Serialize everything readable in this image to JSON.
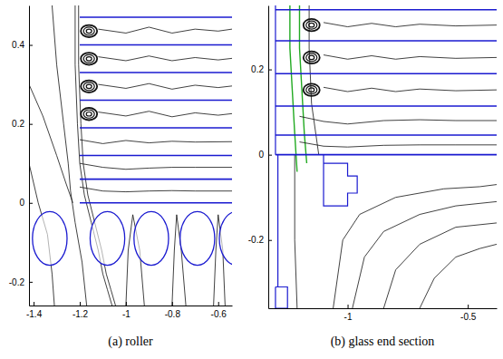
{
  "chart_data": [
    {
      "type": "streamline",
      "title": "(a) roller",
      "xlim": [
        -1.42,
        -0.54
      ],
      "ylim": [
        -0.26,
        0.5
      ],
      "xticks": [
        -1.4,
        -1.2,
        -1,
        -0.8,
        -0.6
      ],
      "yticks": [
        -0.2,
        0,
        0.2,
        0.4
      ],
      "color": "#1a1ad0",
      "plates": {
        "x0": -1.2,
        "y": [
          0.47,
          0.4,
          0.33,
          0.26,
          0.19,
          0.12,
          0.06,
          0.0
        ]
      },
      "rollers": {
        "x": [
          -1.33,
          -1.08,
          -0.89,
          -0.69,
          -0.52
        ],
        "y": -0.09,
        "rx": 0.075,
        "ry": 0.068
      },
      "outlines": [],
      "vortices": {
        "x": [
          -1.16,
          -1.16,
          -1.16,
          -1.16
        ],
        "y": [
          0.435,
          0.365,
          0.295,
          0.225
        ]
      },
      "streamlines": [
        {
          "x": [
            -1.22,
            -1.22,
            -1.21,
            -1.2,
            -1.18,
            -1.15,
            -1.12,
            -1.1,
            -1.08,
            -1.06
          ],
          "y": [
            0.5,
            0.35,
            0.2,
            0.1,
            0.02,
            -0.05,
            -0.12,
            -0.18,
            -0.22,
            -0.26
          ]
        },
        {
          "x": [
            -1.205,
            -1.205,
            -1.195,
            -1.185,
            -1.165,
            -1.135,
            -1.105,
            -1.085,
            -1.065,
            -1.045
          ],
          "y": [
            0.5,
            0.35,
            0.2,
            0.1,
            0.02,
            -0.05,
            -0.12,
            -0.18,
            -0.22,
            -0.26
          ]
        },
        {
          "x": [
            -1.32,
            -1.3,
            -1.27,
            -1.25,
            -1.24,
            -1.22,
            -1.19,
            -1.17
          ],
          "y": [
            0.5,
            0.35,
            0.2,
            0.1,
            0.03,
            -0.05,
            -0.15,
            -0.26
          ]
        },
        {
          "x": [
            -1.42,
            -1.36,
            -1.3,
            -1.26,
            -1.23
          ],
          "y": [
            0.3,
            0.22,
            0.12,
            0.05,
            0.0
          ]
        },
        {
          "x": [
            -1.42,
            -1.38,
            -1.34,
            -1.32,
            -1.31
          ],
          "y": [
            0.1,
            0.0,
            -0.08,
            -0.18,
            -0.26
          ]
        },
        {
          "x": [
            -1.12,
            -1.0,
            -0.9,
            -0.8,
            -0.7,
            -0.6,
            -0.54
          ],
          "y": [
            0.44,
            0.43,
            0.445,
            0.43,
            0.44,
            0.435,
            0.44
          ]
        },
        {
          "x": [
            -1.12,
            -1.0,
            -0.9,
            -0.8,
            -0.7,
            -0.6,
            -0.54
          ],
          "y": [
            0.37,
            0.36,
            0.372,
            0.36,
            0.368,
            0.362,
            0.366
          ]
        },
        {
          "x": [
            -1.12,
            -1.0,
            -0.9,
            -0.8,
            -0.7,
            -0.6,
            -0.54
          ],
          "y": [
            0.3,
            0.29,
            0.302,
            0.288,
            0.298,
            0.292,
            0.296
          ]
        },
        {
          "x": [
            -1.12,
            -1.0,
            -0.9,
            -0.8,
            -0.7,
            -0.6,
            -0.54
          ],
          "y": [
            0.23,
            0.22,
            0.232,
            0.218,
            0.228,
            0.222,
            0.226
          ]
        },
        {
          "x": [
            -1.2,
            -1.1,
            -1.0,
            -0.9,
            -0.8,
            -0.7,
            -0.54
          ],
          "y": [
            0.16,
            0.15,
            0.158,
            0.152,
            0.156,
            0.154,
            0.155
          ]
        },
        {
          "x": [
            -1.2,
            -1.1,
            -1.0,
            -0.9,
            -0.8,
            -0.7,
            -0.54
          ],
          "y": [
            0.1,
            0.09,
            0.085,
            0.088,
            0.09,
            0.09,
            0.09
          ]
        },
        {
          "x": [
            -1.2,
            -1.1,
            -1.0,
            -0.9,
            -0.8,
            -0.7,
            -0.54
          ],
          "y": [
            0.04,
            0.03,
            0.028,
            0.03,
            0.031,
            0.03,
            0.03
          ]
        },
        {
          "x": [
            -1.0,
            -0.99,
            -0.97,
            -0.94,
            -0.92
          ],
          "y": [
            -0.26,
            -0.12,
            -0.03,
            -0.12,
            -0.26
          ]
        },
        {
          "x": [
            -0.8,
            -0.79,
            -0.78,
            -0.76,
            -0.74
          ],
          "y": [
            -0.26,
            -0.12,
            -0.03,
            -0.12,
            -0.26
          ]
        },
        {
          "x": [
            -0.62,
            -0.61,
            -0.6,
            -0.58,
            -0.57
          ],
          "y": [
            -0.26,
            -0.12,
            -0.03,
            -0.12,
            -0.26
          ]
        }
      ]
    },
    {
      "type": "streamline",
      "title": "(b) glass end section",
      "xlim": [
        -1.33,
        -0.38
      ],
      "ylim": [
        -0.36,
        0.35
      ],
      "xticks": [
        -1,
        -0.5
      ],
      "yticks": [
        -0.2,
        0,
        0.2
      ],
      "color": "#1a1ad0",
      "plates": {
        "x0": -1.3,
        "y": [
          0.34,
          0.267,
          0.19,
          0.114,
          0.046,
          0.0
        ]
      },
      "rollers": {
        "x": [],
        "y": -0.09,
        "rx": 0.075,
        "ry": 0.068
      },
      "outlines": [
        {
          "x": [
            -1.3,
            -1.3
          ],
          "y": [
            0.35,
            0.0
          ]
        },
        {
          "x": [
            -1.1,
            -1.1,
            -1.0,
            -1.0,
            -0.96,
            -0.96,
            -1.0,
            -1.0,
            -1.1,
            -1.1
          ],
          "y": [
            0.0,
            -0.02,
            -0.02,
            -0.05,
            -0.05,
            -0.09,
            -0.09,
            -0.12,
            -0.12,
            0.0
          ]
        },
        {
          "x": [
            -1.29,
            -1.29
          ],
          "y": [
            0.0,
            -0.31
          ]
        },
        {
          "x": [
            -1.3,
            -1.25,
            -1.25,
            -1.3,
            -1.3
          ],
          "y": [
            -0.31,
            -0.31,
            -0.36,
            -0.36,
            -0.31
          ]
        }
      ],
      "vortices": {
        "x": [
          -1.15,
          -1.15,
          -1.15
        ],
        "y": [
          0.304,
          0.228,
          0.152
        ]
      },
      "streamlines": [
        {
          "x": [
            -1.2,
            -1.2,
            -1.19,
            -1.18,
            -1.17
          ],
          "y": [
            0.35,
            0.25,
            0.15,
            0.05,
            -0.02
          ],
          "color": "#22aa22"
        },
        {
          "x": [
            -1.24,
            -1.24,
            -1.23,
            -1.22,
            -1.21
          ],
          "y": [
            0.35,
            0.25,
            0.15,
            0.05,
            -0.04
          ],
          "color": "#22aa22"
        },
        {
          "x": [
            -1.16,
            -1.16,
            -1.15,
            -1.13,
            -1.12
          ],
          "y": [
            0.35,
            0.25,
            0.12,
            0.04,
            0.0
          ]
        },
        {
          "x": [
            -1.1,
            -1.0,
            -0.9,
            -0.8,
            -0.7,
            -0.55,
            -0.38
          ],
          "y": [
            0.31,
            0.3,
            0.308,
            0.3,
            0.306,
            0.302,
            0.304
          ]
        },
        {
          "x": [
            -1.1,
            -1.0,
            -0.9,
            -0.8,
            -0.7,
            -0.55,
            -0.38
          ],
          "y": [
            0.234,
            0.224,
            0.232,
            0.224,
            0.23,
            0.226,
            0.228
          ]
        },
        {
          "x": [
            -1.1,
            -1.0,
            -0.9,
            -0.8,
            -0.7,
            -0.55,
            -0.38
          ],
          "y": [
            0.158,
            0.148,
            0.156,
            0.148,
            0.154,
            0.15,
            0.152
          ]
        },
        {
          "x": [
            -1.2,
            -1.1,
            -1.0,
            -0.85,
            -0.7,
            -0.55,
            -0.38
          ],
          "y": [
            0.09,
            0.078,
            0.072,
            0.08,
            0.082,
            0.08,
            0.08
          ]
        },
        {
          "x": [
            -1.2,
            -1.1,
            -1.0,
            -0.85,
            -0.7,
            -0.55,
            -0.38
          ],
          "y": [
            0.03,
            0.02,
            0.018,
            0.022,
            0.023,
            0.023,
            0.023
          ]
        },
        {
          "x": [
            -1.06,
            -1.02,
            -0.95,
            -0.8,
            -0.6,
            -0.45,
            -0.38
          ],
          "y": [
            -0.36,
            -0.2,
            -0.14,
            -0.1,
            -0.08,
            -0.075,
            -0.07
          ]
        },
        {
          "x": [
            -0.98,
            -0.93,
            -0.85,
            -0.7,
            -0.55,
            -0.38
          ],
          "y": [
            -0.36,
            -0.24,
            -0.18,
            -0.14,
            -0.12,
            -0.11
          ]
        },
        {
          "x": [
            -0.85,
            -0.8,
            -0.7,
            -0.55,
            -0.38
          ],
          "y": [
            -0.36,
            -0.27,
            -0.21,
            -0.17,
            -0.16
          ]
        },
        {
          "x": [
            -0.7,
            -0.64,
            -0.55,
            -0.45,
            -0.38
          ],
          "y": [
            -0.36,
            -0.29,
            -0.24,
            -0.22,
            -0.21
          ]
        },
        {
          "x": [
            -1.22,
            -1.22,
            -1.21
          ],
          "y": [
            0.0,
            -0.2,
            -0.36
          ]
        }
      ]
    }
  ]
}
